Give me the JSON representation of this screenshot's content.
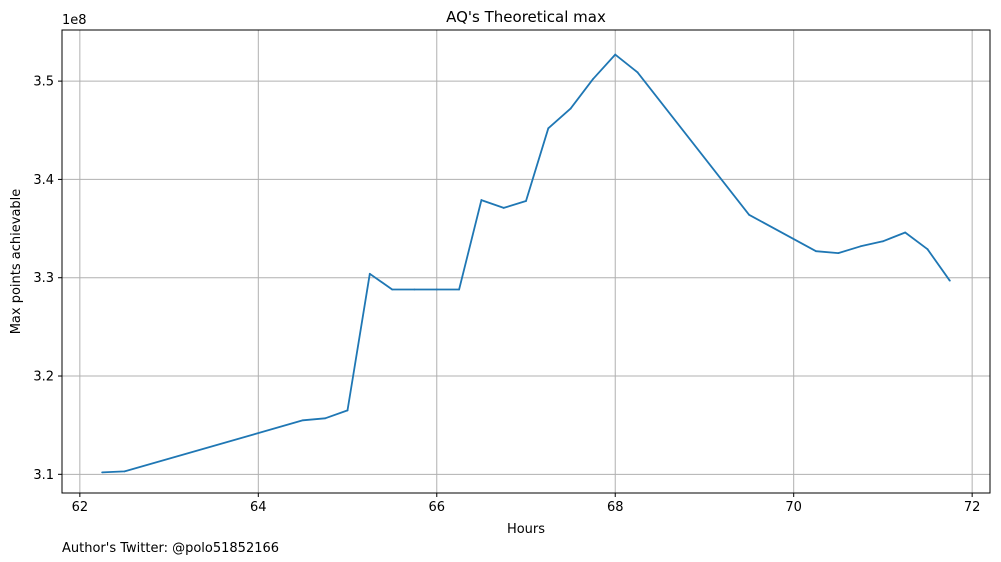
{
  "chart_data": {
    "type": "line",
    "title": "AQ's Theoretical max",
    "xlabel": "Hours",
    "ylabel": "Max points achievable",
    "offset_text": "1e8",
    "footnote": "Author's Twitter: @polo51852166",
    "xlim": [
      61.8,
      72.2
    ],
    "ylim": [
      3.081,
      3.552
    ],
    "x_ticks": [
      62,
      64,
      66,
      68,
      70,
      72
    ],
    "x_tick_labels": [
      "62",
      "64",
      "66",
      "68",
      "70",
      "72"
    ],
    "y_ticks": [
      3.1,
      3.2,
      3.3,
      3.4,
      3.5
    ],
    "y_tick_labels": [
      "3.1",
      "3.2",
      "3.3",
      "3.4",
      "3.5"
    ],
    "grid": true,
    "series": [
      {
        "color": "#1f77b4",
        "x": [
          62.25,
          62.5,
          64.5,
          64.75,
          65.0,
          65.25,
          65.5,
          65.75,
          66.0,
          66.25,
          66.5,
          66.75,
          67.0,
          67.25,
          67.5,
          67.75,
          68.0,
          68.25,
          69.5,
          70.25,
          70.5,
          70.75,
          71.0,
          71.25,
          71.5,
          71.75
        ],
        "y": [
          3.102,
          3.103,
          3.155,
          3.157,
          3.165,
          3.304,
          3.288,
          3.288,
          3.288,
          3.288,
          3.379,
          3.371,
          3.378,
          3.452,
          3.472,
          3.502,
          3.527,
          3.509,
          3.364,
          3.327,
          3.325,
          3.332,
          3.337,
          3.346,
          3.329,
          3.297
        ]
      }
    ]
  }
}
